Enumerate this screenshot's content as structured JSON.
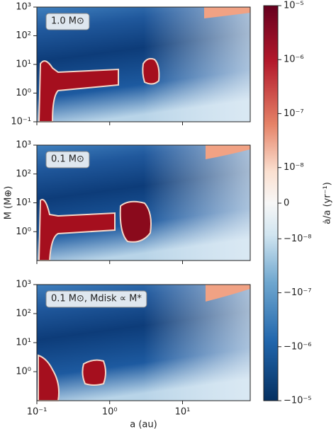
{
  "chart_data": [
    {
      "type": "heatmap",
      "label": "1.0 M⊙",
      "scale": "log",
      "xlim": [
        0.1,
        85
      ],
      "ylim": [
        0.1,
        1000
      ],
      "yticks": [
        {
          "value": 0.1,
          "label": "10⁻¹"
        },
        {
          "value": 1,
          "label": "10⁰"
        },
        {
          "value": 10,
          "label": "10¹"
        },
        {
          "value": 100,
          "label": "10²"
        },
        {
          "value": 1000,
          "label": "10³"
        }
      ]
    },
    {
      "type": "heatmap",
      "label": "0.1 M⊙",
      "ylabel": "M (M⊕)",
      "scale": "log",
      "xlim": [
        0.1,
        85
      ],
      "ylim": [
        0.1,
        1000
      ],
      "yticks": [
        {
          "value": 1,
          "label": "10⁰"
        },
        {
          "value": 10,
          "label": "10¹"
        },
        {
          "value": 100,
          "label": "10²"
        },
        {
          "value": 1000,
          "label": "10³"
        }
      ]
    },
    {
      "type": "heatmap",
      "label": "0.1 M⊙, Mdisk ∝ M*",
      "xlabel": "a (au)",
      "scale": "log",
      "xlim": [
        0.1,
        85
      ],
      "ylim": [
        0.1,
        1000
      ],
      "xticks": [
        {
          "value": 0.1,
          "label": "10⁻¹"
        },
        {
          "value": 1,
          "label": "10⁰"
        },
        {
          "value": 10,
          "label": "10¹"
        }
      ],
      "yticks": [
        {
          "value": 1,
          "label": "10⁰"
        },
        {
          "value": 10,
          "label": "10¹"
        },
        {
          "value": 100,
          "label": "10²"
        },
        {
          "value": 1000,
          "label": "10³"
        }
      ]
    },
    {
      "type": "colorbar",
      "ylabel": "ȧ/a (yr⁻¹)",
      "scale": "symlog",
      "ylim": [
        -1e-05,
        1e-05
      ],
      "yticks": [
        {
          "value": 1e-05,
          "label": "10⁻⁵"
        },
        {
          "value": 1e-06,
          "label": "10⁻⁶"
        },
        {
          "value": 1e-07,
          "label": "10⁻⁷"
        },
        {
          "value": 1e-08,
          "label": "10⁻⁸"
        },
        0,
        {
          "value": -1e-08,
          "label": "−10⁻⁸"
        },
        {
          "value": -1e-07,
          "label": "−10⁻⁷"
        },
        {
          "value": -1e-06,
          "label": "−10⁻⁶"
        },
        {
          "value": -1e-05,
          "label": "−10⁻⁵"
        }
      ]
    }
  ]
}
